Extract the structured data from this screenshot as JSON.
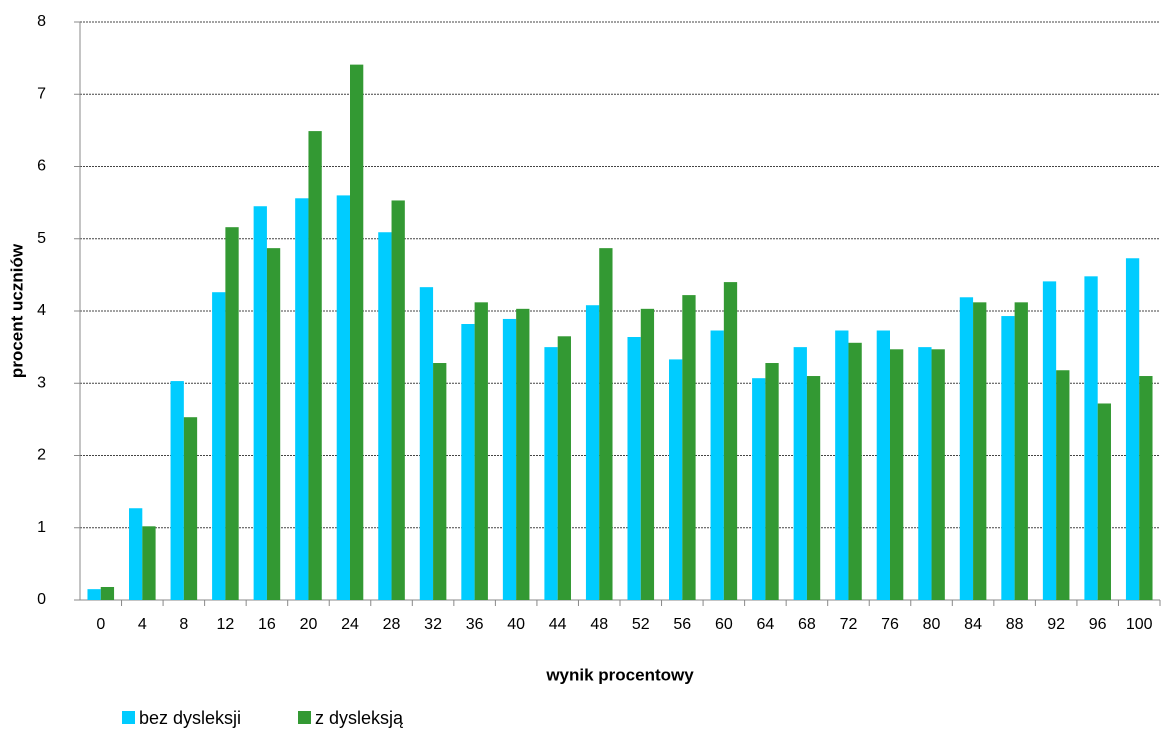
{
  "chart_data": {
    "type": "bar",
    "x_label": "wynik procentowy",
    "y_label": "procent uczniów",
    "categories": [
      "0",
      "4",
      "8",
      "12",
      "16",
      "20",
      "24",
      "28",
      "32",
      "36",
      "40",
      "44",
      "48",
      "52",
      "56",
      "60",
      "64",
      "68",
      "72",
      "76",
      "80",
      "84",
      "88",
      "92",
      "96",
      "100"
    ],
    "series": [
      {
        "name": "bez dysleksji",
        "color": "#00ccff",
        "values": [
          0.15,
          1.27,
          3.03,
          4.26,
          5.45,
          5.56,
          5.6,
          5.09,
          4.33,
          3.82,
          3.89,
          3.5,
          4.08,
          3.64,
          3.33,
          3.73,
          3.07,
          3.5,
          3.73,
          3.73,
          3.5,
          4.19,
          3.93,
          4.41,
          4.48,
          4.73
        ]
      },
      {
        "name": "z dysleksją",
        "color": "#339933",
        "values": [
          0.18,
          1.02,
          2.53,
          5.16,
          4.87,
          6.49,
          7.41,
          5.53,
          3.28,
          4.12,
          4.03,
          3.65,
          4.87,
          4.03,
          4.22,
          4.4,
          3.28,
          3.1,
          3.56,
          3.47,
          3.47,
          4.12,
          4.12,
          3.18,
          2.72,
          3.1
        ]
      }
    ],
    "ylim": [
      0,
      8
    ],
    "yticks": [
      0,
      1,
      2,
      3,
      4,
      5,
      6,
      7,
      8
    ],
    "grid": true,
    "legend": "bottom-left"
  }
}
